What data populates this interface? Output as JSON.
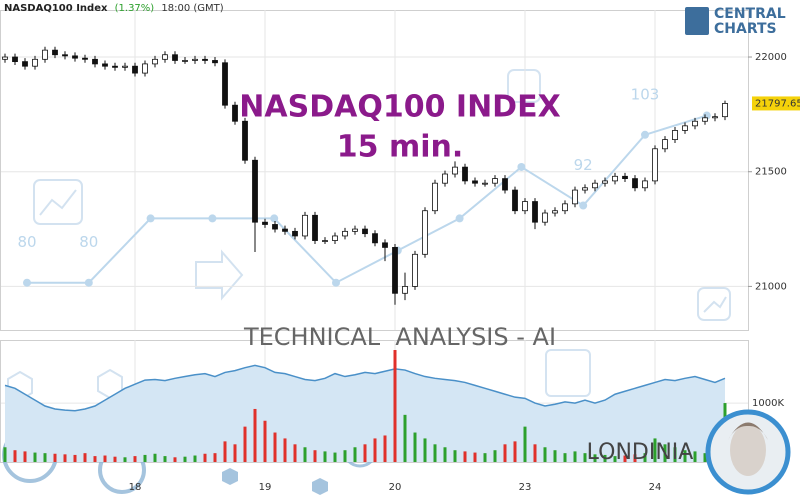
{
  "chart_data": {
    "type": "candlestick",
    "title": "NASDAQ100 Index",
    "change": "(1.37%)",
    "time": "18:00 (GMT)",
    "watermark_title": "NASDAQ100 INDEX",
    "timeframe": "15 min.",
    "tagline": "TECHNICAL  ANALYSIS - AI",
    "brand": "LONDINIA",
    "logo": [
      "CENTRAL",
      "CHARTS"
    ],
    "categories": [
      null,
      null,
      null,
      null,
      null,
      null,
      null,
      null,
      null,
      null,
      null,
      null,
      null,
      "18",
      null,
      null,
      null,
      null,
      null,
      null,
      null,
      null,
      null,
      null,
      null,
      null,
      "19",
      null,
      null,
      null,
      null,
      null,
      null,
      null,
      null,
      null,
      null,
      null,
      null,
      "20",
      null,
      null,
      null,
      null,
      null,
      null,
      null,
      null,
      null,
      null,
      null,
      null,
      "23",
      null,
      null,
      null,
      null,
      null,
      null,
      null,
      null,
      null,
      null,
      null,
      null,
      "24",
      null,
      null,
      null,
      null,
      null,
      null,
      null
    ],
    "open": [
      21990,
      22000,
      21980,
      21960,
      21990,
      22030,
      22010,
      22005,
      21995,
      21990,
      21970,
      21960,
      21955,
      21960,
      21930,
      21970,
      21990,
      22010,
      21985,
      21985,
      21990,
      21985,
      21975,
      21790,
      21720,
      21550,
      21280,
      21270,
      21250,
      21240,
      21220,
      21310,
      21200,
      21200,
      21220,
      21240,
      21250,
      21230,
      21190,
      21170,
      20970,
      21000,
      21140,
      21330,
      21450,
      21490,
      21520,
      21460,
      21450,
      21450,
      21470,
      21420,
      21330,
      21370,
      21280,
      21320,
      21330,
      21360,
      21420,
      21430,
      21450,
      21460,
      21480,
      21470,
      21430,
      21460,
      21600,
      21640,
      21680,
      21700,
      21720,
      21735,
      21740
    ],
    "high": [
      22015,
      22015,
      21995,
      22005,
      22045,
      22045,
      22025,
      22020,
      22010,
      22005,
      21985,
      21975,
      21975,
      21975,
      21985,
      22005,
      22025,
      22025,
      22000,
      22005,
      22005,
      22000,
      21990,
      21805,
      21735,
      21565,
      21295,
      21285,
      21265,
      21255,
      21325,
      21325,
      21215,
      21235,
      21255,
      21265,
      21265,
      21245,
      21205,
      21185,
      21060,
      21155,
      21345,
      21465,
      21505,
      21545,
      21535,
      21475,
      21465,
      21485,
      21485,
      21435,
      21385,
      21385,
      21335,
      21345,
      21375,
      21435,
      21445,
      21465,
      21475,
      21495,
      21495,
      21485,
      21475,
      21615,
      21655,
      21695,
      21715,
      21735,
      21750,
      21755,
      21810
    ],
    "low": [
      21975,
      21965,
      21945,
      21945,
      21975,
      21995,
      21990,
      21980,
      21975,
      21955,
      21945,
      21940,
      21940,
      21915,
      21915,
      21955,
      21975,
      21970,
      21970,
      21970,
      21970,
      21960,
      21775,
      21705,
      21535,
      21150,
      21255,
      21235,
      21225,
      21205,
      21205,
      21185,
      21185,
      21185,
      21205,
      21225,
      21215,
      21175,
      21110,
      20920,
      20940,
      20985,
      21125,
      21315,
      21435,
      21475,
      21445,
      21435,
      21435,
      21435,
      21405,
      21315,
      21315,
      21250,
      21265,
      21305,
      21315,
      21345,
      21405,
      21415,
      21435,
      21445,
      21455,
      21415,
      21415,
      21445,
      21585,
      21625,
      21665,
      21685,
      21705,
      21720,
      21725
    ],
    "close": [
      22000,
      21980,
      21960,
      21990,
      22030,
      22010,
      22005,
      21995,
      21990,
      21970,
      21960,
      21955,
      21960,
      21930,
      21970,
      21990,
      22010,
      21985,
      21985,
      21990,
      21985,
      21975,
      21790,
      21720,
      21550,
      21280,
      21270,
      21250,
      21240,
      21220,
      21310,
      21200,
      21200,
      21220,
      21240,
      21250,
      21230,
      21190,
      21170,
      20970,
      21000,
      21140,
      21330,
      21450,
      21490,
      21520,
      21460,
      21450,
      21450,
      21470,
      21420,
      21330,
      21370,
      21280,
      21320,
      21330,
      21360,
      21420,
      21430,
      21450,
      21460,
      21480,
      21470,
      21430,
      21460,
      21600,
      21640,
      21680,
      21700,
      21720,
      21735,
      21740,
      21797.65
    ],
    "ylim": [
      20810,
      22205
    ],
    "yticks": [
      21000,
      21500,
      22000
    ],
    "grid": true,
    "volume": {
      "values": [
        250,
        200,
        180,
        160,
        150,
        140,
        130,
        120,
        150,
        100,
        110,
        90,
        80,
        100,
        120,
        140,
        100,
        80,
        90,
        110,
        140,
        150,
        350,
        300,
        600,
        900,
        700,
        500,
        400,
        300,
        250,
        200,
        180,
        160,
        200,
        250,
        300,
        400,
        450,
        1900,
        800,
        500,
        400,
        300,
        250,
        200,
        180,
        160,
        150,
        200,
        300,
        350,
        600,
        300,
        250,
        200,
        150,
        180,
        150,
        130,
        120,
        100,
        110,
        130,
        150,
        400,
        300,
        250,
        200,
        180,
        150,
        250,
        1000
      ],
      "up_color": "#2ca02c",
      "down_color": "#e0302a",
      "ylim": [
        0,
        2070
      ],
      "yticks": [
        {
          "value": 1000,
          "label": "1000K"
        }
      ]
    },
    "indicator": {
      "color": "#4a90c8",
      "fill": "#d4e6f4",
      "values": [
        1300,
        1250,
        1150,
        1050,
        950,
        900,
        880,
        870,
        900,
        950,
        1050,
        1150,
        1250,
        1320,
        1390,
        1400,
        1380,
        1420,
        1450,
        1480,
        1500,
        1450,
        1520,
        1550,
        1600,
        1640,
        1600,
        1520,
        1500,
        1450,
        1400,
        1380,
        1420,
        1500,
        1450,
        1480,
        1520,
        1500,
        1540,
        1580,
        1560,
        1500,
        1450,
        1420,
        1400,
        1380,
        1350,
        1300,
        1250,
        1200,
        1150,
        1100,
        1080,
        1000,
        950,
        980,
        1020,
        1000,
        1050,
        1000,
        1050,
        1150,
        1200,
        1250,
        1300,
        1350,
        1400,
        1380,
        1420,
        1450,
        1400,
        1350,
        1420
      ]
    },
    "score": {
      "color": "#bcd7ec",
      "values": [
        80,
        80,
        90,
        90,
        90,
        80,
        85,
        90,
        98,
        92,
        103,
        106
      ],
      "value_labels": [
        "80",
        "80",
        null,
        null,
        null,
        null,
        null,
        null,
        null,
        "92",
        "103",
        null
      ],
      "ylim": [
        70,
        122
      ]
    }
  }
}
